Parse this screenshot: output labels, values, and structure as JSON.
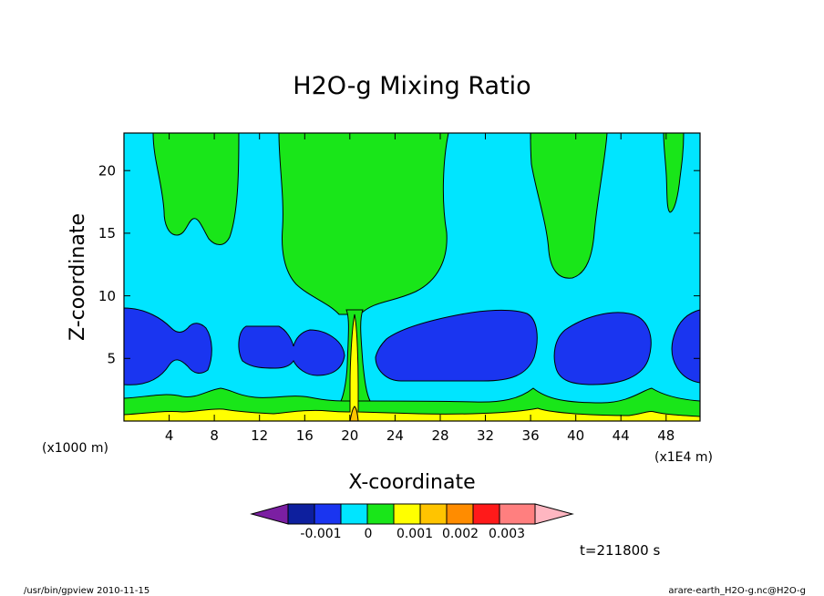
{
  "chart_data": {
    "type": "contour",
    "title": "H2O-g Mixing Ratio",
    "xlabel": "X-coordinate",
    "ylabel": "Z-coordinate",
    "x_unit_note": "(x1E4 m)",
    "y_unit_note": "(x1000 m)",
    "xlim": [
      0,
      51
    ],
    "ylim": [
      0,
      23
    ],
    "x_ticks": [
      "4",
      "8",
      "12",
      "16",
      "20",
      "24",
      "28",
      "32",
      "36",
      "40",
      "44",
      "48"
    ],
    "y_ticks": [
      "5",
      "10",
      "15",
      "20"
    ],
    "colorbar": {
      "colors": [
        "#7b1fa2",
        "#0d1f9e",
        "#1a35f0",
        "#00e5ff",
        "#19e619",
        "#ffff00",
        "#ffc400",
        "#ff8c00",
        "#ff1a1a",
        "#ff7f7f",
        "#ffb6c1"
      ],
      "labels": [
        "-0.001",
        "0",
        "0.001",
        "0.002",
        "0.003"
      ]
    },
    "time_label": "t=211800 s"
  },
  "footer": {
    "left": "/usr/bin/gpview  2010-11-15",
    "right": "arare-earth_H2O-g.nc@H2O-g"
  }
}
